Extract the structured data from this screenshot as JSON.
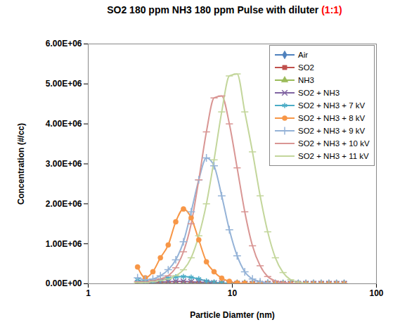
{
  "chart_data": {
    "type": "line",
    "title": "SO2 180 ppm NH3 180 ppm Pulse with diluter (1:1)",
    "x_label": "Particle Diamter (nm)",
    "y_label": "Concentration (#/cc)",
    "log": "x",
    "grid": false,
    "legend": "top-right",
    "xlim": [
      1,
      100
    ],
    "xticks": [
      1,
      10,
      100
    ],
    "ylim": [
      0,
      6000000
    ],
    "yticks": [
      {
        "value": 0,
        "label": "0.00E+00"
      },
      {
        "value": 1000000,
        "label": "1.00E+06"
      },
      {
        "value": 2000000,
        "label": "2.00E+06"
      },
      {
        "value": 3000000,
        "label": "3.00E+06"
      },
      {
        "value": 4000000,
        "label": "4.00E+06"
      },
      {
        "value": 5000000,
        "label": "5.00E+06"
      },
      {
        "value": 6000000,
        "label": "6.00E+06"
      }
    ],
    "x": [
      2.2,
      2.49,
      2.81,
      3.17,
      3.59,
      4.05,
      4.58,
      5.18,
      5.85,
      6.61,
      7.47,
      8.44,
      9.54,
      10.8,
      12.2,
      13.8,
      15.6,
      17.6,
      19.9,
      22.5,
      25.4,
      28.7,
      32.4,
      36.6,
      41.4,
      46.8,
      52.9,
      59.7
    ],
    "series": [
      {
        "name": "Air",
        "color": "#4F81BD",
        "marker": "diamond",
        "values": [
          0,
          0,
          0,
          0,
          0,
          0,
          0,
          0,
          0,
          0,
          0,
          0,
          0,
          0,
          0,
          0,
          0,
          0,
          0,
          0,
          0,
          0,
          0,
          0,
          0,
          0,
          0,
          0
        ]
      },
      {
        "name": "SO2",
        "color": "#C0504D",
        "marker": "square",
        "values": [
          0,
          0,
          0,
          0,
          0,
          0,
          0,
          0,
          0,
          0,
          0,
          0,
          0,
          0,
          0,
          0,
          0,
          0,
          0,
          0,
          0,
          0,
          0,
          0,
          0,
          0,
          0,
          0
        ]
      },
      {
        "name": "NH3",
        "color": "#9BBB59",
        "marker": "triangle",
        "values": [
          0,
          0,
          0,
          0,
          0,
          0,
          0,
          0,
          0,
          0,
          0,
          0,
          0,
          0,
          0,
          0,
          0,
          0,
          0,
          0,
          0,
          0,
          0,
          0,
          0,
          0,
          0,
          0
        ]
      },
      {
        "name": "SO2 + NH3",
        "color": "#8064A2",
        "marker": "x",
        "values": [
          20000,
          20000,
          30000,
          40000,
          50000,
          60000,
          60000,
          50000,
          40000,
          30000,
          20000,
          10000,
          0,
          0,
          0,
          0,
          0,
          0,
          0,
          0,
          0,
          0,
          0,
          0,
          0,
          0,
          0,
          0
        ]
      },
      {
        "name": "SO2 + NH3 + 7 kV",
        "color": "#4BACC6",
        "marker": "asterisk",
        "values": [
          100000,
          50000,
          60000,
          100000,
          140000,
          170000,
          180000,
          160000,
          120000,
          70000,
          40000,
          20000,
          10000,
          0,
          0,
          0,
          0,
          0,
          0,
          0,
          0,
          0,
          0,
          0,
          0,
          0,
          0,
          0
        ]
      },
      {
        "name": "SO2 + NH3 + 8 kV",
        "color": "#F79646",
        "marker": "circle",
        "values": [
          420000,
          150000,
          300000,
          650000,
          970000,
          1550000,
          1870000,
          1650000,
          1100000,
          550000,
          300000,
          140000,
          60000,
          20000,
          10000,
          0,
          0,
          0,
          0,
          0,
          0,
          0,
          0,
          0,
          0,
          0,
          0,
          0
        ]
      },
      {
        "name": "SO2 + NH3 + 9 kV",
        "color": "#95B3D7",
        "marker": "plus",
        "values": [
          150000,
          100000,
          120000,
          200000,
          350000,
          600000,
          1050000,
          1800000,
          2600000,
          3150000,
          2950000,
          2200000,
          1350000,
          700000,
          300000,
          120000,
          50000,
          20000,
          0,
          0,
          0,
          0,
          0,
          0,
          0,
          0,
          0,
          0
        ]
      },
      {
        "name": "SO2 + NH3 + 10 kV",
        "color": "#D99694",
        "marker": "dash",
        "values": [
          50000,
          50000,
          80000,
          120000,
          200000,
          400000,
          800000,
          1500000,
          2600000,
          3800000,
          4650000,
          4700000,
          4000000,
          2900000,
          1800000,
          950000,
          450000,
          180000,
          70000,
          30000,
          10000,
          0,
          0,
          0,
          0,
          0,
          0,
          0
        ]
      },
      {
        "name": "SO2 + NH3 + 11 kV",
        "color": "#C3D69B",
        "marker": "dash",
        "values": [
          30000,
          30000,
          50000,
          80000,
          120000,
          200000,
          350000,
          650000,
          1200000,
          2000000,
          3100000,
          4300000,
          5200000,
          5250000,
          4300000,
          3300000,
          2200000,
          1300000,
          650000,
          280000,
          100000,
          40000,
          10000,
          0,
          0,
          0,
          0,
          0
        ]
      }
    ]
  }
}
